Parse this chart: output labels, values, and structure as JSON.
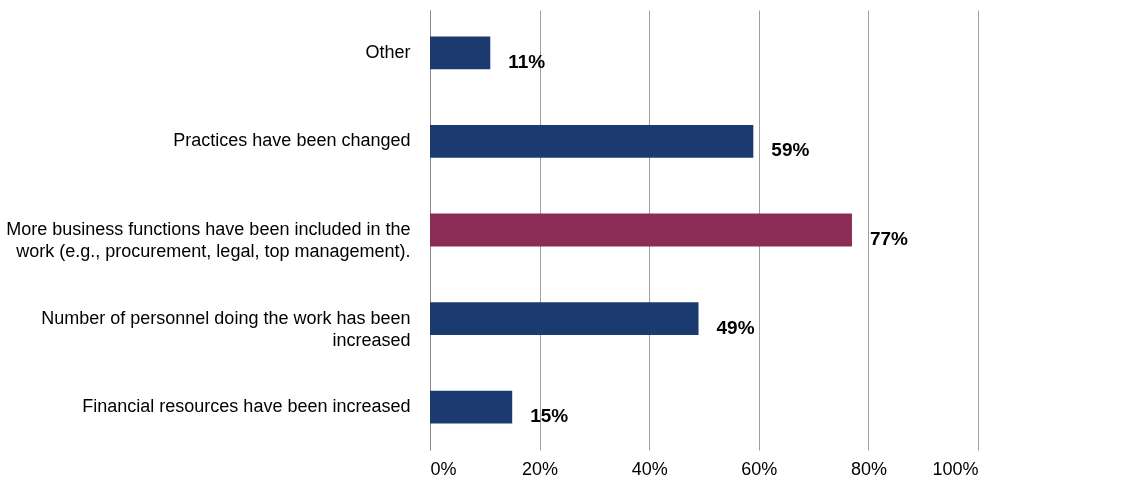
{
  "chart_data": {
    "type": "bar",
    "orientation": "horizontal",
    "categories": [
      "Other",
      "Practices have been changed",
      "More business functions have been included in the work (e.g., procurement, legal, top management).",
      "Number of personnel doing the work has been increased",
      "Financial resources have been increased"
    ],
    "values": [
      11,
      59,
      77,
      49,
      15
    ],
    "colors": [
      "#1b3a6f",
      "#1b3a6f",
      "#8b2c57",
      "#1b3a6f",
      "#1b3a6f"
    ],
    "value_labels": [
      "11%",
      "59%",
      "77%",
      "49%",
      "15%"
    ],
    "xlim": [
      0,
      100
    ],
    "xticks": [
      {
        "value": 0,
        "label": "0%"
      },
      {
        "value": 20,
        "label": "20%"
      },
      {
        "value": 40,
        "label": "40%"
      },
      {
        "value": 60,
        "label": "60%"
      },
      {
        "value": 80,
        "label": "80%"
      },
      {
        "value": 100,
        "label": "100%"
      }
    ],
    "grid": "x"
  }
}
